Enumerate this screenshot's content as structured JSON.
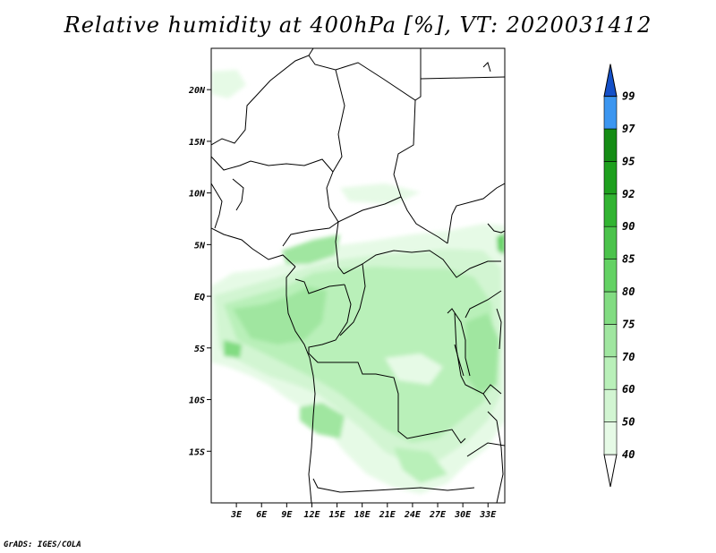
{
  "title": "Relative humidity at 400hPa [%], VT: 2020031412",
  "credit": "GrADS: IGES/COLA",
  "map": {
    "lon_range": [
      0,
      35
    ],
    "lat_range": [
      -20,
      24
    ],
    "lon_ticks": [
      {
        "value": 3,
        "label": "3E"
      },
      {
        "value": 6,
        "label": "6E"
      },
      {
        "value": 9,
        "label": "9E"
      },
      {
        "value": 12,
        "label": "12E"
      },
      {
        "value": 15,
        "label": "15E"
      },
      {
        "value": 18,
        "label": "18E"
      },
      {
        "value": 21,
        "label": "21E"
      },
      {
        "value": 24,
        "label": "24E"
      },
      {
        "value": 27,
        "label": "27E"
      },
      {
        "value": 30,
        "label": "30E"
      },
      {
        "value": 33,
        "label": "33E"
      }
    ],
    "lat_ticks": [
      {
        "value": 20,
        "label": "20N"
      },
      {
        "value": 15,
        "label": "15N"
      },
      {
        "value": 10,
        "label": "10N"
      },
      {
        "value": 5,
        "label": "5N"
      },
      {
        "value": 0,
        "label": "EQ"
      },
      {
        "value": -5,
        "label": "5S"
      },
      {
        "value": -10,
        "label": "10S"
      },
      {
        "value": -15,
        "label": "15S"
      }
    ]
  },
  "colorbar": {
    "levels": [
      {
        "label": "40",
        "color": "#e6fae6"
      },
      {
        "label": "50",
        "color": "#d2f5d2"
      },
      {
        "label": "60",
        "color": "#b9f0b9"
      },
      {
        "label": "70",
        "color": "#a0e6a0"
      },
      {
        "label": "75",
        "color": "#82dc82"
      },
      {
        "label": "80",
        "color": "#64d264"
      },
      {
        "label": "85",
        "color": "#4bc34b"
      },
      {
        "label": "90",
        "color": "#32b432"
      },
      {
        "label": "92",
        "color": "#1ea01e"
      },
      {
        "label": "95",
        "color": "#148c14"
      },
      {
        "label": "97",
        "color": "#3c96f0"
      },
      {
        "label": "99",
        "color": "#1e6ee6"
      }
    ],
    "below_color": "#ffffff",
    "above_color": "#1450c8"
  }
}
